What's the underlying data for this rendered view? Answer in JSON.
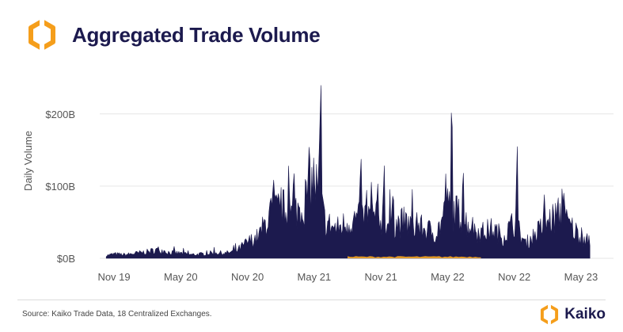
{
  "header": {
    "title": "Aggregated Trade Volume"
  },
  "footer": {
    "source": "Source: Kaiko Trade Data, 18 Centralized Exchanges.",
    "brand": "Kaiko"
  },
  "colors": {
    "series": "#1c1a4e",
    "secondary": "#f5a623",
    "brand_orange": "#f59e1b",
    "grid": "#e6e6e6",
    "axis_text": "#555555"
  },
  "chart_data": {
    "type": "area",
    "title": "Aggregated Trade Volume",
    "xlabel": "",
    "ylabel": "Daily Volume",
    "x_tick_labels": [
      "Nov 19",
      "May 20",
      "Nov 20",
      "May 21",
      "Nov 21",
      "May 22",
      "Nov 22",
      "May 23"
    ],
    "y_tick_labels": [
      "$0B",
      "$100B",
      "$200B"
    ],
    "x_range": [
      "2019-10",
      "2023-06"
    ],
    "ylim": [
      0,
      270
    ],
    "grid": "horizontal",
    "series": [
      {
        "name": "",
        "unit": "B USD",
        "monthly_points": [
          [
            "2019-10",
            3
          ],
          [
            "2019-11",
            6
          ],
          [
            "2019-12",
            5
          ],
          [
            "2020-01",
            7
          ],
          [
            "2020-02",
            9
          ],
          [
            "2020-03",
            12
          ],
          [
            "2020-04",
            8
          ],
          [
            "2020-05",
            7
          ],
          [
            "2020-06",
            5
          ],
          [
            "2020-07",
            6
          ],
          [
            "2020-08",
            8
          ],
          [
            "2020-09",
            7
          ],
          [
            "2020-10",
            10
          ],
          [
            "2020-11",
            22
          ],
          [
            "2020-12",
            30
          ],
          [
            "2021-01",
            60
          ],
          [
            "2021-02",
            70
          ],
          [
            "2021-03",
            60
          ],
          [
            "2021-04",
            75
          ],
          [
            "2021-05",
            110
          ],
          [
            "2021-06",
            50
          ],
          [
            "2021-07",
            40
          ],
          [
            "2021-08",
            50
          ],
          [
            "2021-09",
            55
          ],
          [
            "2021-10",
            60
          ],
          [
            "2021-11",
            55
          ],
          [
            "2021-12",
            45
          ],
          [
            "2022-01",
            50
          ],
          [
            "2022-02",
            45
          ],
          [
            "2022-03",
            40
          ],
          [
            "2022-04",
            35
          ],
          [
            "2022-05",
            70
          ],
          [
            "2022-06",
            60
          ],
          [
            "2022-07",
            45
          ],
          [
            "2022-08",
            35
          ],
          [
            "2022-09",
            40
          ],
          [
            "2022-10",
            30
          ],
          [
            "2022-11",
            50
          ],
          [
            "2022-12",
            20
          ],
          [
            "2023-01",
            35
          ],
          [
            "2023-02",
            50
          ],
          [
            "2023-03",
            60
          ],
          [
            "2023-04",
            45
          ],
          [
            "2023-05",
            30
          ],
          [
            "2023-06",
            20
          ]
        ],
        "spikes": [
          [
            "2021-01-11",
            120
          ],
          [
            "2021-02-22",
            130
          ],
          [
            "2021-04-18",
            175
          ],
          [
            "2021-05-19",
            265
          ],
          [
            "2021-09-07",
            150
          ],
          [
            "2021-11-10",
            135
          ],
          [
            "2021-12-04",
            100
          ],
          [
            "2022-05-12",
            230
          ],
          [
            "2022-06-13",
            130
          ],
          [
            "2022-11-09",
            160
          ],
          [
            "2023-03-10",
            100
          ],
          [
            "2023-03-14",
            100
          ]
        ]
      },
      {
        "name": "",
        "unit": "B USD",
        "approx_level": 2
      }
    ]
  }
}
